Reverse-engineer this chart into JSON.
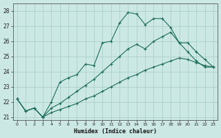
{
  "xlabel": "Humidex (Indice chaleur)",
  "bg_color": "#cce8e4",
  "grid_color": "#aacfcb",
  "line_color": "#1a6b5a",
  "x_values": [
    0,
    1,
    2,
    3,
    4,
    5,
    6,
    7,
    8,
    9,
    10,
    11,
    12,
    13,
    14,
    15,
    16,
    17,
    18,
    19,
    20,
    21,
    22,
    23
  ],
  "line1": [
    22.2,
    21.4,
    21.6,
    21.0,
    22.0,
    23.3,
    23.6,
    23.8,
    24.5,
    24.4,
    25.9,
    26.0,
    27.2,
    27.9,
    27.8,
    27.1,
    27.5,
    27.5,
    26.9,
    25.9,
    25.3,
    24.7,
    24.3,
    24.3
  ],
  "line2": [
    22.2,
    21.4,
    21.6,
    21.0,
    21.6,
    21.9,
    22.3,
    22.7,
    23.1,
    23.5,
    24.0,
    24.5,
    25.0,
    25.5,
    25.8,
    25.5,
    26.0,
    26.3,
    26.6,
    25.9,
    25.9,
    25.3,
    24.8,
    24.3
  ],
  "line3": [
    22.2,
    21.4,
    21.6,
    21.0,
    21.3,
    21.5,
    21.7,
    21.9,
    22.2,
    22.4,
    22.7,
    23.0,
    23.3,
    23.6,
    23.8,
    24.1,
    24.3,
    24.5,
    24.7,
    24.9,
    24.8,
    24.6,
    24.4,
    24.3
  ],
  "ylim": [
    20.8,
    28.5
  ],
  "xlim": [
    -0.5,
    23.5
  ],
  "yticks": [
    21,
    22,
    23,
    24,
    25,
    26,
    27,
    28
  ],
  "xticks": [
    0,
    1,
    2,
    3,
    4,
    5,
    6,
    7,
    8,
    9,
    10,
    11,
    12,
    13,
    14,
    15,
    16,
    17,
    18,
    19,
    20,
    21,
    22,
    23
  ]
}
